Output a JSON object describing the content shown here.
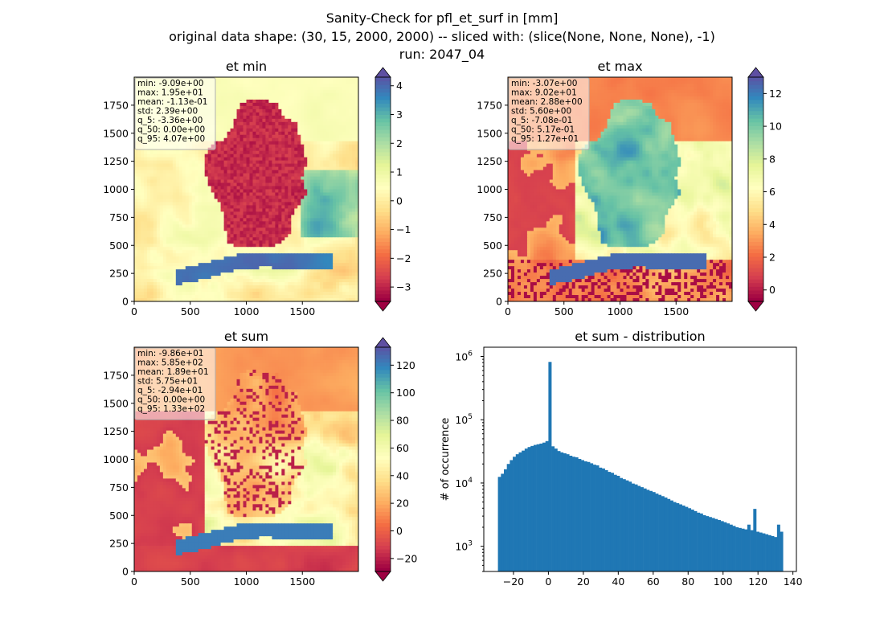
{
  "figure": {
    "title_lines": [
      "Sanity-Check for pfl_et_surf in [mm]",
      "original data shape: (30, 15, 2000, 2000) -- sliced with: (slice(None, None, None), -1)",
      "run: 2047_04"
    ]
  },
  "chart_data": [
    {
      "type": "heatmap",
      "title": "et min",
      "colormap": "Spectral",
      "xticks": [
        0,
        500,
        1000,
        1500
      ],
      "yticks": [
        0,
        250,
        500,
        750,
        1000,
        1250,
        1500,
        1750
      ],
      "xlim": [
        0,
        2000
      ],
      "ylim": [
        0,
        2000
      ],
      "colorbar": {
        "ticks": [
          "−3",
          "−2",
          "−1",
          "0",
          "1",
          "2",
          "3",
          "4"
        ],
        "range": [
          -3.5,
          4.3
        ],
        "extend": "both"
      },
      "stats": [
        "min: -9.09e+00",
        "max: 1.95e+01",
        "mean: -1.13e-01",
        "std: 2.39e+00",
        "q_5: -3.36e+00",
        "q_50: 0.00e+00",
        "q_95: 4.07e+00"
      ]
    },
    {
      "type": "heatmap",
      "title": "et max",
      "colormap": "Spectral",
      "xticks": [
        0,
        500,
        1000,
        1500
      ],
      "yticks": [
        0,
        250,
        500,
        750,
        1000,
        1250,
        1500,
        1750
      ],
      "xlim": [
        0,
        2000
      ],
      "ylim": [
        0,
        2000
      ],
      "colorbar": {
        "ticks": [
          "0",
          "2",
          "4",
          "6",
          "8",
          "10",
          "12"
        ],
        "range": [
          -0.7,
          13.0
        ],
        "extend": "both"
      },
      "stats": [
        "min: -3.07e+00",
        "max: 9.02e+01",
        "mean: 2.88e+00",
        "std: 5.60e+00",
        "q_5: -7.08e-01",
        "q_50: 5.17e-01",
        "q_95: 1.27e+01"
      ]
    },
    {
      "type": "heatmap",
      "title": "et sum",
      "colormap": "Spectral",
      "xticks": [
        0,
        500,
        1000,
        1500
      ],
      "yticks": [
        0,
        250,
        500,
        750,
        1000,
        1250,
        1500,
        1750
      ],
      "xlim": [
        0,
        2000
      ],
      "ylim": [
        0,
        2000
      ],
      "colorbar": {
        "ticks": [
          "−20",
          "0",
          "20",
          "40",
          "60",
          "80",
          "100",
          "120"
        ],
        "range": [
          -29.4,
          133.0
        ],
        "extend": "both"
      },
      "stats": [
        "min: -9.86e+01",
        "max: 5.85e+02",
        "mean: 1.89e+01",
        "std: 5.75e+01",
        "q_5: -2.94e+01",
        "q_50: 0.00e+00",
        "q_95: 1.33e+02"
      ]
    },
    {
      "type": "bar",
      "title": "et sum - distribution",
      "xlabel": "",
      "ylabel": "# of occurrence",
      "yscale": "log",
      "xlim": [
        -37,
        142
      ],
      "ylim": [
        400,
        1400000
      ],
      "xticks": [
        "−20",
        "0",
        "20",
        "40",
        "60",
        "80",
        "100",
        "120",
        "140"
      ],
      "yticks": [
        "10^3",
        "10^4",
        "10^5",
        "10^6"
      ],
      "bar_color": "#1f77b4",
      "x": [
        -28.9,
        -27.2,
        -25.5,
        -23.8,
        -22.1,
        -20.4,
        -18.7,
        -17,
        -15.3,
        -13.6,
        -11.9,
        -10.2,
        -8.5,
        -6.8,
        -5.1,
        -3.4,
        -1.7,
        0,
        1.7,
        3.4,
        5.1,
        6.8,
        8.5,
        10.2,
        11.9,
        13.6,
        15.3,
        17,
        18.7,
        20.4,
        22.1,
        23.8,
        25.5,
        27.2,
        28.9,
        30.6,
        32.3,
        34,
        35.7,
        37.4,
        39.1,
        40.8,
        42.5,
        44.2,
        45.9,
        47.6,
        49.3,
        51,
        52.7,
        54.4,
        56.1,
        57.8,
        59.5,
        61.2,
        62.9,
        64.6,
        66.3,
        68,
        69.7,
        71.4,
        73.1,
        74.8,
        76.5,
        78.2,
        79.9,
        81.6,
        83.3,
        85,
        86.7,
        88.4,
        90.1,
        91.8,
        93.5,
        95.2,
        96.9,
        98.6,
        100.3,
        102,
        103.7,
        105.4,
        107.1,
        108.8,
        110.5,
        112.2,
        113.9,
        115.6,
        117.3,
        119,
        120.7,
        122.4,
        124.1,
        125.8,
        127.5,
        129.2,
        130.9,
        132.6
      ],
      "values": [
        12500,
        14000,
        16500,
        20000,
        23000,
        26000,
        28500,
        30500,
        32500,
        35000,
        37000,
        38500,
        40000,
        41000,
        42000,
        43500,
        46000,
        820000,
        38000,
        35000,
        32000,
        30500,
        29500,
        28500,
        27000,
        26000,
        25500,
        24000,
        23000,
        22000,
        21500,
        20500,
        19500,
        19000,
        17500,
        17000,
        16000,
        15000,
        14500,
        13500,
        13000,
        12000,
        11500,
        11000,
        10500,
        9800,
        9500,
        9000,
        8600,
        8200,
        7800,
        7500,
        7200,
        6800,
        6500,
        6200,
        5900,
        5600,
        5300,
        5000,
        4800,
        4600,
        4400,
        4200,
        4000,
        3800,
        3600,
        3400,
        3300,
        3100,
        3000,
        2900,
        2800,
        2700,
        2600,
        2500,
        2400,
        2300,
        2200,
        2100,
        2000,
        1950,
        1900,
        1850,
        2200,
        1800,
        3900,
        1700,
        1650,
        1600,
        1550,
        1500,
        1450,
        1400,
        2200,
        1700
      ]
    }
  ]
}
